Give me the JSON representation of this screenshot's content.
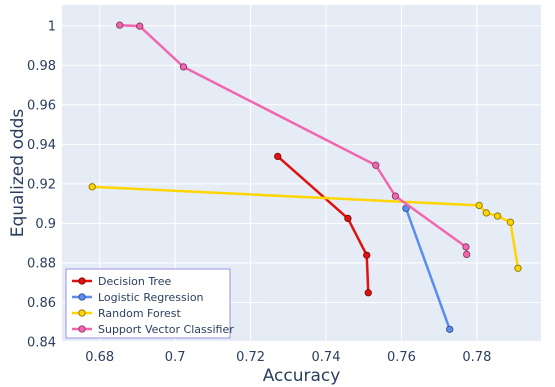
{
  "chart_data": {
    "type": "line",
    "title": "",
    "xlabel": "Accuracy",
    "ylabel": "Equalized odds",
    "xlim": [
      0.67,
      0.797
    ],
    "ylim": [
      0.8405,
      1.0105
    ],
    "x_ticks": [
      0.68,
      0.7,
      0.72,
      0.74,
      0.76,
      0.78
    ],
    "x_tick_labels": [
      "0.68",
      "0.7",
      "0.72",
      "0.74",
      "0.76",
      "0.78"
    ],
    "y_ticks": [
      0.84,
      0.86,
      0.88,
      0.9,
      0.92,
      0.94,
      0.96,
      0.98,
      1.0
    ],
    "y_tick_labels": [
      "0.84",
      "0.86",
      "0.88",
      "0.9",
      "0.92",
      "0.94",
      "0.96",
      "0.98",
      "1"
    ],
    "grid": true,
    "legend_position": "bottom-left",
    "series": [
      {
        "name": "Decision Tree",
        "color": "#e0120f",
        "x": [
          0.7272,
          0.7458,
          0.7508,
          0.7512
        ],
        "y": [
          0.9339,
          0.9025,
          0.8839,
          0.8649
        ]
      },
      {
        "name": "Logistic Regression",
        "color": "#5b8def",
        "x": [
          0.7612,
          0.7728
        ],
        "y": [
          0.9076,
          0.8464
        ]
      },
      {
        "name": "Random Forest",
        "color": "#ffd500",
        "x": [
          0.678,
          0.7806,
          0.7825,
          0.7855,
          0.7889,
          0.7909
        ],
        "y": [
          0.9185,
          0.9091,
          0.9053,
          0.9037,
          0.9006,
          0.8773
        ]
      },
      {
        "name": "Support Vector Classifier",
        "color": "#f266b0",
        "x": [
          0.6853,
          0.6906,
          0.7022,
          0.7532,
          0.7584,
          0.7771,
          0.7773
        ],
        "y": [
          1.0003,
          0.9998,
          0.9792,
          0.9294,
          0.9138,
          0.8881,
          0.8843
        ]
      }
    ]
  }
}
